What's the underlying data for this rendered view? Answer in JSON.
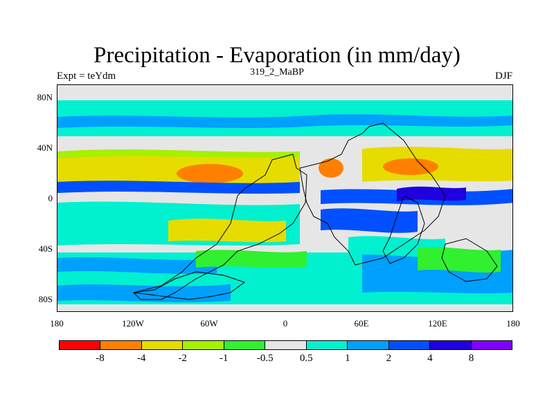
{
  "title": "Precipitation - Evaporation (in mm/day)",
  "subtitle": "319_2_MaBP",
  "left_label": "Expt = teYdm",
  "right_label": "DJF",
  "map": {
    "projection": "cylindrical-equidistant",
    "lon_range": [
      -180,
      180
    ],
    "lat_range": [
      -90,
      90
    ],
    "lat_ticks": [
      "80N",
      "40N",
      "0",
      "40S",
      "80S"
    ],
    "lon_ticks": [
      "180",
      "120W",
      "60W",
      "0",
      "60E",
      "120E",
      "180"
    ]
  },
  "colorbar": {
    "colors": [
      "#ff0000",
      "#ff8000",
      "#e6dc00",
      "#a6f000",
      "#30f030",
      "#e6e6e6",
      "#00f0d0",
      "#00a0ff",
      "#0050ff",
      "#2000e0",
      "#8000ff"
    ],
    "labels": [
      "-8",
      "-4",
      "-2",
      "-1",
      "-0.5",
      "0.5",
      "1",
      "2",
      "4",
      "8"
    ]
  }
}
